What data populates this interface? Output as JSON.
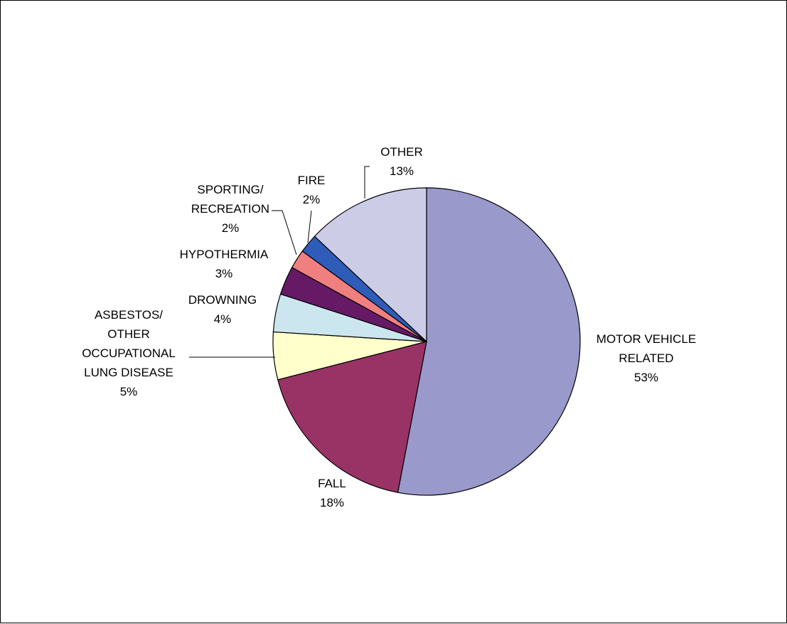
{
  "chart_data": {
    "type": "pie",
    "title": "",
    "start_angle_deg": 0,
    "direction": "clockwise",
    "slices": [
      {
        "label": [
          "MOTOR VEHICLE",
          "RELATED"
        ],
        "value": 53,
        "pct_label": "53%",
        "color": "#9999cc"
      },
      {
        "label": [
          "FALL"
        ],
        "value": 18,
        "pct_label": "18%",
        "color": "#993366"
      },
      {
        "label": [
          "ASBESTOS/",
          "OTHER",
          "OCCUPATIONAL",
          "LUNG DISEASE"
        ],
        "value": 5,
        "pct_label": "5%",
        "color": "#ffffcc"
      },
      {
        "label": [
          "DROWNING"
        ],
        "value": 4,
        "pct_label": "4%",
        "color": "#cce6ef"
      },
      {
        "label": [
          "HYPOTHERMIA"
        ],
        "value": 3,
        "pct_label": "3%",
        "color": "#661a66"
      },
      {
        "label": [
          "SPORTING/",
          "RECREATION"
        ],
        "value": 2,
        "pct_label": "2%",
        "color": "#f08080"
      },
      {
        "label": [
          "FIRE"
        ],
        "value": 2,
        "pct_label": "2%",
        "color": "#2e5cb8"
      },
      {
        "label": [
          "OTHER"
        ],
        "value": 13,
        "pct_label": "13%",
        "color": "#cccce6"
      }
    ]
  }
}
